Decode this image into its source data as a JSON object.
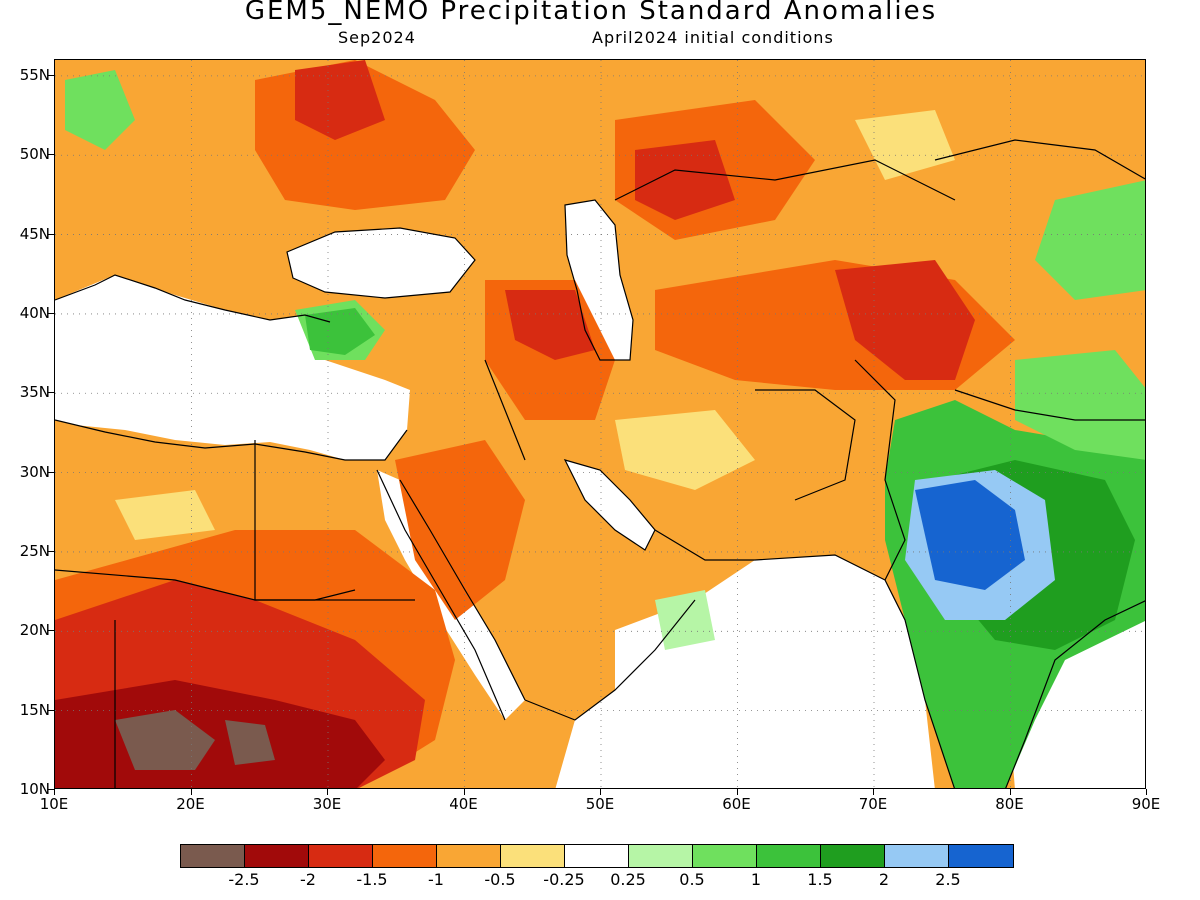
{
  "title": "GEM5_NEMO Precipitation Standard Anomalies",
  "subtitle_left": "Sep2024",
  "subtitle_right": "April2024 initial conditions",
  "map": {
    "lat_labels": [
      "55N",
      "50N",
      "45N",
      "40N",
      "35N",
      "30N",
      "25N",
      "20N",
      "15N",
      "10N"
    ],
    "lat_values": [
      55,
      50,
      45,
      40,
      35,
      30,
      25,
      20,
      15,
      10
    ],
    "lon_labels": [
      "10E",
      "20E",
      "30E",
      "40E",
      "50E",
      "60E",
      "70E",
      "80E",
      "90E"
    ],
    "lon_values": [
      10,
      20,
      30,
      40,
      50,
      60,
      70,
      80,
      90
    ],
    "lat_range": [
      10,
      56
    ],
    "lon_range": [
      10,
      90
    ],
    "grid": "dotted"
  },
  "legend": {
    "colors": [
      "#7a5a4e",
      "#a10a0a",
      "#d72b12",
      "#f4660c",
      "#f9a634",
      "#fbe07a",
      "#ffffff",
      "#b6f5a6",
      "#6fe05e",
      "#3cc23b",
      "#1f9e1f",
      "#96c9f4",
      "#1664d0"
    ],
    "labels": [
      "-2.5",
      "-2",
      "-1.5",
      "-1",
      "-0.5",
      "-0.25",
      "0.25",
      "0.5",
      "1",
      "1.5",
      "2",
      "2.5"
    ]
  }
}
